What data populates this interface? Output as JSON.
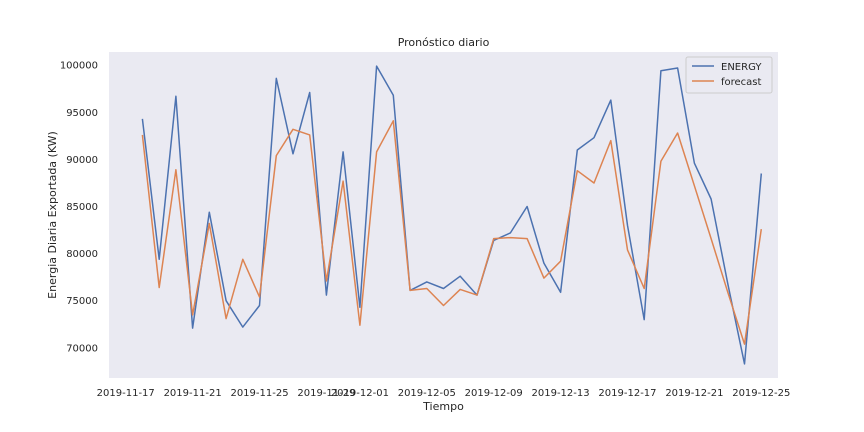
{
  "chart_data": {
    "type": "line",
    "title": "Pronóstico diario",
    "xlabel": "Tiempo",
    "ylabel": "Energia Diaria Exportada (KW)",
    "x": [
      "2019-11-18",
      "2019-11-19",
      "2019-11-20",
      "2019-11-21",
      "2019-11-22",
      "2019-11-23",
      "2019-11-24",
      "2019-11-25",
      "2019-11-26",
      "2019-11-27",
      "2019-11-28",
      "2019-11-29",
      "2019-11-30",
      "2019-12-01",
      "2019-12-02",
      "2019-12-03",
      "2019-12-04",
      "2019-12-05",
      "2019-12-06",
      "2019-12-07",
      "2019-12-08",
      "2019-12-09",
      "2019-12-10",
      "2019-12-11",
      "2019-12-12",
      "2019-12-13",
      "2019-12-14",
      "2019-12-15",
      "2019-12-16",
      "2019-12-17",
      "2019-12-18",
      "2019-12-19",
      "2019-12-20",
      "2019-12-21",
      "2019-12-22",
      "2019-12-23",
      "2019-12-24",
      "2019-12-25"
    ],
    "series": [
      {
        "name": "ENERGY",
        "color": "#4c72b0",
        "values": [
          94300,
          79400,
          96700,
          72100,
          84400,
          75000,
          72200,
          74500,
          98600,
          90600,
          97100,
          75600,
          90800,
          74300,
          99900,
          96800,
          76100,
          77000,
          76300,
          77600,
          75600,
          81400,
          82200,
          85000,
          79000,
          75900,
          91000,
          92300,
          96300,
          83000,
          73000,
          99400,
          99700,
          89600,
          85800,
          76800,
          68300,
          88500
        ]
      },
      {
        "name": "forecast",
        "color": "#dd8452",
        "values": [
          92600,
          76400,
          88900,
          73500,
          83200,
          73100,
          79400,
          75400,
          90400,
          93200,
          92600,
          77100,
          87700,
          72400,
          90800,
          94100,
          76100,
          76300,
          74500,
          76200,
          75600,
          81600,
          81700,
          81600,
          77400,
          79200,
          88800,
          87500,
          92000,
          80400,
          76300,
          89800,
          92800,
          87200,
          81600,
          75900,
          70400,
          82600
        ]
      }
    ],
    "x_ticks": [
      "2019-11-17",
      "2019-11-21",
      "2019-11-25",
      "2019-11-29",
      "2019-12-01",
      "2019-12-05",
      "2019-12-09",
      "2019-12-13",
      "2019-12-17",
      "2019-12-21",
      "2019-12-25"
    ],
    "y_ticks": [
      "70000",
      "75000",
      "80000",
      "85000",
      "90000",
      "95000",
      "100000"
    ],
    "ylim": [
      66800,
      101400
    ],
    "xlim": [
      "2019-11-16",
      "2019-12-26"
    ],
    "grid": false,
    "legend": "top-right",
    "background": "#eaeaf2"
  }
}
